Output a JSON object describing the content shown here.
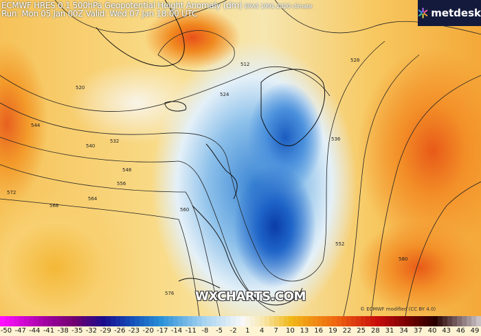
{
  "header": {
    "title": "ECMWF HRES 0.1 500hPa Geopotential Height Anomaly (dm)",
    "climate": "ERA5 1991-2020 climate",
    "run": "Run: Mon 05 Jan 00Z Valid: Wed 07 Jan 18:00 UTC"
  },
  "logo": {
    "text": "metdesk",
    "icon": "metdesk-star-icon"
  },
  "watermark": "WXCHARTS.COM",
  "copyright": "© ECMWF modified (CC BY 4.0)",
  "colorbar": {
    "ticks": [
      "-50",
      "-47",
      "-44",
      "-41",
      "-38",
      "-35",
      "-32",
      "-29",
      "-26",
      "-23",
      "-20",
      "-17",
      "-14",
      "-11",
      "-8",
      "-5",
      "-2",
      "1",
      "4",
      "7",
      "10",
      "13",
      "16",
      "19",
      "22",
      "25",
      "28",
      "31",
      "34",
      "37",
      "40",
      "43",
      "46",
      "49"
    ],
    "stops": [
      {
        "v": -50,
        "c": "#ff10ff"
      },
      {
        "v": -41,
        "c": "#a000a0"
      },
      {
        "v": -35,
        "c": "#700070"
      },
      {
        "v": -29,
        "c": "#1c0c8c"
      },
      {
        "v": -23,
        "c": "#1450b8"
      },
      {
        "v": -17,
        "c": "#2a90d8"
      },
      {
        "v": -8,
        "c": "#a8d4f0"
      },
      {
        "v": 0,
        "c": "#f8f8f8"
      },
      {
        "v": 4,
        "c": "#f8e8b0"
      },
      {
        "v": 10,
        "c": "#f0b818"
      },
      {
        "v": 19,
        "c": "#f06810"
      },
      {
        "v": 28,
        "c": "#c80c0c"
      },
      {
        "v": 34,
        "c": "#7a0000"
      },
      {
        "v": 40,
        "c": "#280000"
      },
      {
        "v": 49,
        "c": "#c8c0c4"
      }
    ]
  },
  "contour_labels": [
    "512",
    "520",
    "524",
    "528",
    "532",
    "536",
    "540",
    "544",
    "548",
    "552",
    "556",
    "560",
    "564",
    "568",
    "572",
    "576",
    "580"
  ]
}
